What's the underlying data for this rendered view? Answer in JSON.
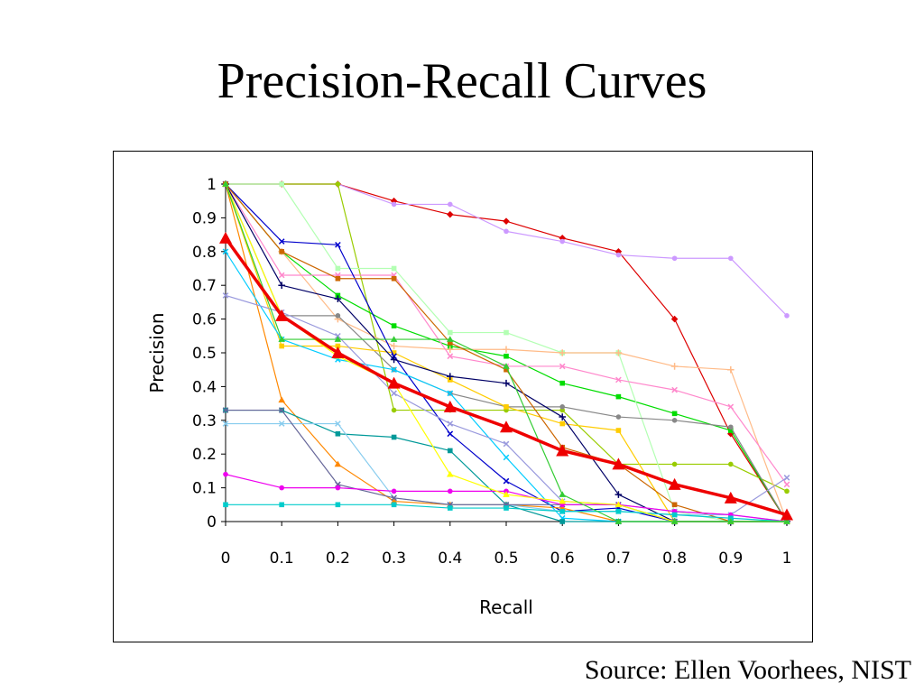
{
  "slide": {
    "title": "Precision-Recall Curves",
    "source": "Source: Ellen Voorhees, NIST"
  },
  "chart_data": {
    "type": "line",
    "title": "",
    "xlabel": "Recall",
    "ylabel": "Precision",
    "xlim": [
      0,
      1
    ],
    "ylim": [
      0,
      1
    ],
    "grid": false,
    "legend": "none",
    "x": [
      0,
      0.1,
      0.2,
      0.3,
      0.4,
      0.5,
      0.6,
      0.7,
      0.8,
      0.9,
      1
    ],
    "x_tick_labels": [
      "0",
      "0.1",
      "0.2",
      "0.3",
      "0.4",
      "0.5",
      "0.6",
      "0.7",
      "0.8",
      "0.9",
      "1"
    ],
    "y_ticks": [
      0,
      0.1,
      0.2,
      0.3,
      0.4,
      0.5,
      0.6,
      0.7,
      0.8,
      0.9,
      1
    ],
    "y_tick_labels": [
      "0",
      "0.1",
      "0.2",
      "0.3",
      "0.4",
      "0.5",
      "0.6",
      "0.7",
      "0.8",
      "0.9",
      "1"
    ],
    "series": [
      {
        "color": "#dd0000",
        "marker": "diamond",
        "values": [
          1,
          1,
          1,
          0.95,
          0.91,
          0.89,
          0.84,
          0.8,
          0.6,
          0.26,
          0
        ]
      },
      {
        "color": "#cc99ff",
        "marker": "circle",
        "values": [
          1,
          1,
          1,
          0.94,
          0.94,
          0.86,
          0.83,
          0.79,
          0.78,
          0.78,
          0.61
        ]
      },
      {
        "color": "#99cc00",
        "marker": "circle",
        "values": [
          1,
          1,
          1,
          0.33,
          0.33,
          0.33,
          0.33,
          0.17,
          0.17,
          0.17,
          0.09
        ]
      },
      {
        "color": "#00dd00",
        "marker": "square",
        "values": [
          1,
          0.8,
          0.67,
          0.58,
          0.52,
          0.49,
          0.41,
          0.37,
          0.32,
          0.27,
          0
        ]
      },
      {
        "color": "#b3ffb3",
        "marker": "square",
        "values": [
          1,
          1,
          0.75,
          0.75,
          0.56,
          0.56,
          0.5,
          0.5,
          0.03,
          0,
          0
        ]
      },
      {
        "color": "#ffbb88",
        "marker": "plus",
        "values": [
          1,
          0.8,
          0.6,
          0.52,
          0.51,
          0.51,
          0.5,
          0.5,
          0.46,
          0.45,
          0
        ]
      },
      {
        "color": "#ff88cc",
        "marker": "cross",
        "values": [
          1,
          0.73,
          0.73,
          0.73,
          0.49,
          0.46,
          0.46,
          0.42,
          0.39,
          0.34,
          0.11
        ]
      },
      {
        "color": "#888888",
        "marker": "circle",
        "values": [
          1,
          0.61,
          0.61,
          0.45,
          0.38,
          0.34,
          0.34,
          0.31,
          0.3,
          0.28,
          0
        ]
      },
      {
        "color": "#ffcc00",
        "marker": "square",
        "values": [
          1,
          0.52,
          0.52,
          0.5,
          0.42,
          0.34,
          0.29,
          0.27,
          0,
          0,
          0
        ]
      },
      {
        "color": "#0000cc",
        "marker": "cross",
        "values": [
          1,
          0.83,
          0.82,
          0.49,
          0.26,
          0.12,
          0.03,
          0.04,
          0,
          0,
          0
        ]
      },
      {
        "color": "#000066",
        "marker": "plus",
        "values": [
          1,
          0.7,
          0.66,
          0.48,
          0.43,
          0.41,
          0.31,
          0.08,
          0,
          0,
          0
        ]
      },
      {
        "color": "#cc6600",
        "marker": "square",
        "values": [
          1,
          0.8,
          0.72,
          0.72,
          0.53,
          0.45,
          0.22,
          0.17,
          0.05,
          0,
          0
        ]
      },
      {
        "color": "#ff8800",
        "marker": "triangle",
        "values": [
          1,
          0.36,
          0.17,
          0.06,
          0.05,
          0.05,
          0.04,
          0,
          0,
          0,
          0
        ]
      },
      {
        "color": "#00ccff",
        "marker": "cross",
        "values": [
          0.8,
          0.54,
          0.48,
          0.45,
          0.38,
          0.19,
          0.01,
          0,
          0,
          0,
          0
        ]
      },
      {
        "color": "#009999",
        "marker": "square",
        "values": [
          0.33,
          0.33,
          0.26,
          0.25,
          0.21,
          0.05,
          0,
          0,
          0,
          0,
          0
        ]
      },
      {
        "color": "#9999dd",
        "marker": "cross",
        "values": [
          0.67,
          0.62,
          0.55,
          0.38,
          0.29,
          0.23,
          0.06,
          0.05,
          0.03,
          0.02,
          0.13
        ]
      },
      {
        "color": "#88ccee",
        "marker": "cross",
        "values": [
          0.29,
          0.29,
          0.29,
          0.07,
          0.05,
          0.05,
          0.03,
          0.03,
          0.02,
          0.02,
          0
        ]
      },
      {
        "color": "#666699",
        "marker": "cross",
        "values": [
          0.33,
          0.33,
          0.11,
          0.07,
          0.05,
          0.05,
          0.05,
          0.05,
          0,
          0,
          0
        ]
      },
      {
        "color": "#ee00ee",
        "marker": "circle",
        "values": [
          0.14,
          0.1,
          0.1,
          0.09,
          0.09,
          0.09,
          0.05,
          0.05,
          0.03,
          0.02,
          0
        ]
      },
      {
        "color": "#00cccc",
        "marker": "square",
        "values": [
          0.05,
          0.05,
          0.05,
          0.05,
          0.04,
          0.04,
          0.03,
          0.03,
          0.02,
          0.01,
          0
        ]
      },
      {
        "color": "#ffff00",
        "marker": "triangle",
        "values": [
          1,
          0.61,
          0.49,
          0.41,
          0.14,
          0.08,
          0.06,
          0.05,
          0,
          0,
          0
        ]
      },
      {
        "color": "#33cc33",
        "marker": "triangle",
        "values": [
          1,
          0.54,
          0.54,
          0.54,
          0.54,
          0.46,
          0.08,
          0,
          0,
          0,
          0
        ]
      },
      {
        "color": "#ee0000",
        "marker": "triangle",
        "bold": true,
        "values": [
          0.84,
          0.61,
          0.5,
          0.41,
          0.34,
          0.28,
          0.21,
          0.17,
          0.11,
          0.07,
          0.02
        ]
      }
    ]
  }
}
